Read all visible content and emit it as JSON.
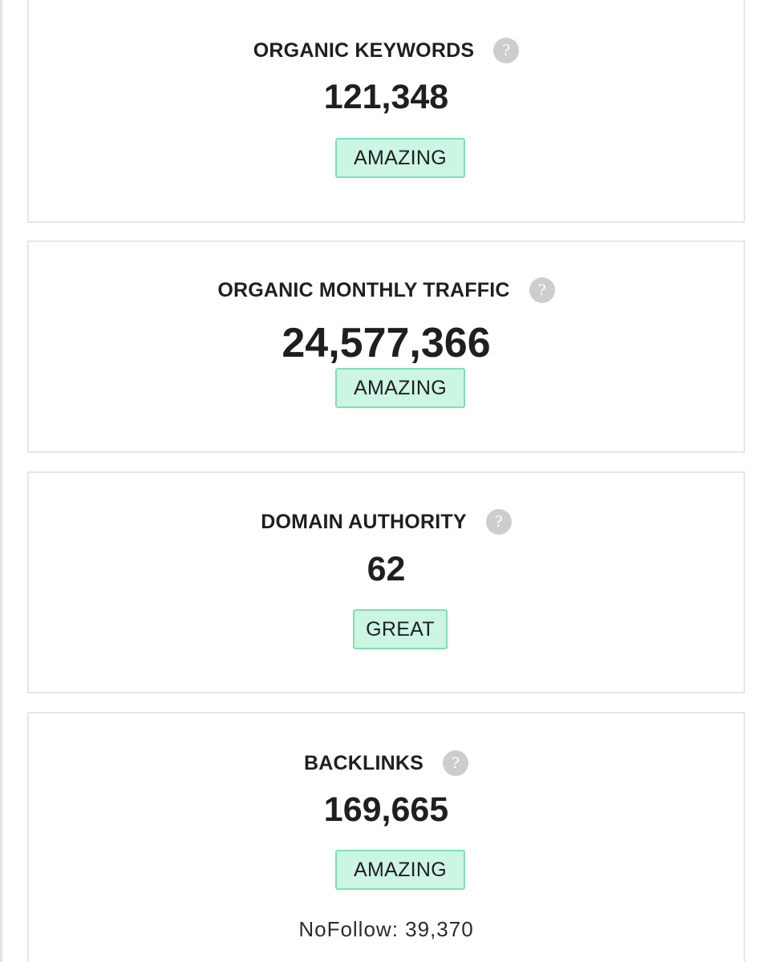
{
  "metrics": [
    {
      "title": "ORGANIC KEYWORDS",
      "value": "121,348",
      "rating": "AMAZING",
      "help_icon": "question-mark"
    },
    {
      "title": "ORGANIC MONTHLY TRAFFIC",
      "value": "24,577,366",
      "rating": "AMAZING",
      "help_icon": "question-mark"
    },
    {
      "title": "DOMAIN AUTHORITY",
      "value": "62",
      "rating": "GREAT",
      "help_icon": "question-mark"
    },
    {
      "title": "BACKLINKS",
      "value": "169,665",
      "rating": "AMAZING",
      "help_icon": "question-mark",
      "nofollow": "NoFollow: 39,370"
    }
  ],
  "help_glyph": "?",
  "colors": {
    "badge_bg": "#ccf5e3",
    "badge_border": "#7fe0b4",
    "help_icon_bg": "#cdcdcd",
    "card_border": "#e6e6e6",
    "text": "#1f1f1f"
  }
}
